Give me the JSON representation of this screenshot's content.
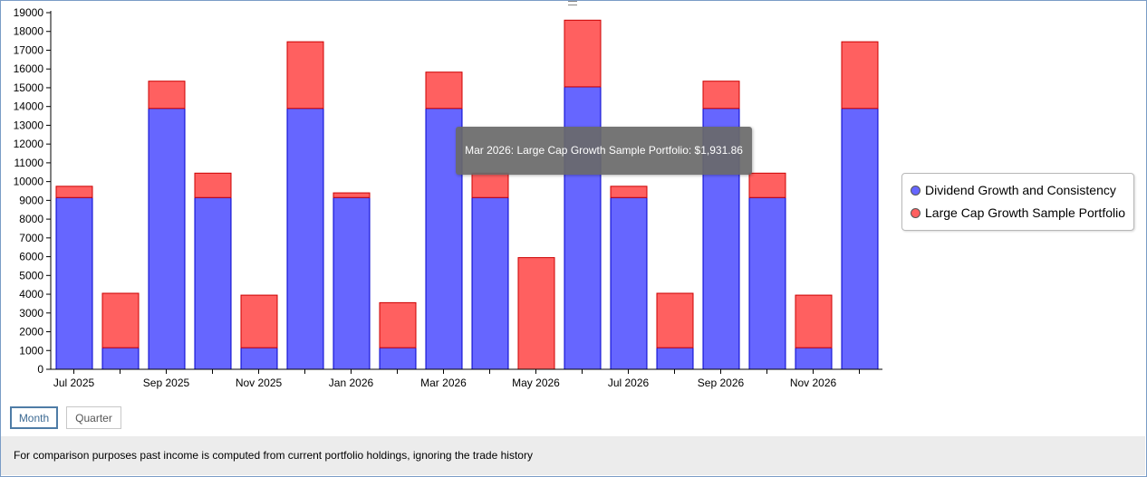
{
  "chart_data": {
    "type": "bar",
    "stacked": true,
    "categories": [
      "Jul 2025",
      "Aug 2025",
      "Sep 2025",
      "Oct 2025",
      "Nov 2025",
      "Dec 2025",
      "Jan 2026",
      "Feb 2026",
      "Mar 2026",
      "Apr 2026",
      "May 2026",
      "Jun 2026",
      "Jul 2026",
      "Aug 2026",
      "Sep 2026",
      "Oct 2026",
      "Nov 2026",
      "Dec 2026"
    ],
    "tick_labels": [
      "Jul 2025",
      "",
      "Sep 2025",
      "",
      "Nov 2025",
      "",
      "Jan 2026",
      "",
      "Mar 2026",
      "",
      "May 2026",
      "",
      "Jul 2026",
      "",
      "Sep 2026",
      "",
      "Nov 2026",
      ""
    ],
    "series": [
      {
        "name": "Dividend Growth and Consistency",
        "color": "#6666ff",
        "stroke": "#0000cc",
        "values": [
          9150,
          1150,
          13900,
          9150,
          1150,
          13900,
          9150,
          1150,
          13900,
          9150,
          0,
          15050,
          9150,
          1150,
          13900,
          9150,
          1150,
          13900
        ]
      },
      {
        "name": "Large Cap Growth Sample Portfolio",
        "color": "#ff6060",
        "stroke": "#cc0000",
        "values": [
          600,
          2900,
          1450,
          1300,
          2800,
          3550,
          250,
          2400,
          1931.86,
          1300,
          5950,
          3550,
          600,
          2900,
          1450,
          1300,
          2800,
          3550
        ]
      }
    ],
    "ylim": [
      0,
      19000
    ],
    "ytick_step": 1000,
    "legend_position": "right",
    "tooltip": "Mar 2026: Large Cap Growth Sample Portfolio: $1,931.86"
  },
  "buttons": {
    "month": "Month",
    "quarter": "Quarter"
  },
  "footer": "For comparison purposes past income is computed from current portfolio holdings, ignoring the trade history"
}
